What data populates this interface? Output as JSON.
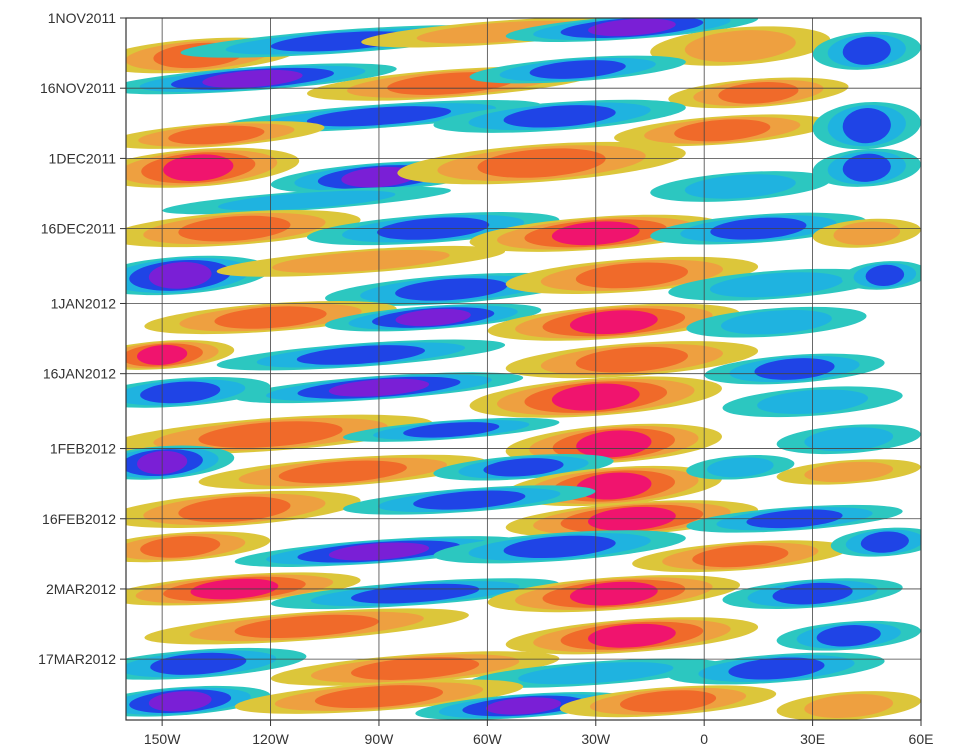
{
  "chart_data": {
    "type": "heatmap",
    "title": "",
    "xlabel": "",
    "ylabel": "",
    "x_ticks": [
      "150W",
      "120W",
      "90W",
      "60W",
      "30W",
      "0",
      "30E",
      "60E"
    ],
    "x_tick_values": [
      -150,
      -120,
      -90,
      -60,
      -30,
      0,
      30,
      60
    ],
    "xlim": [
      -160,
      60
    ],
    "y_ticks": [
      "1NOV2011",
      "16NOV2011",
      "1DEC2011",
      "16DEC2011",
      "1JAN2012",
      "16JAN2012",
      "1FEB2012",
      "16FEB2012",
      "2MAR2012",
      "17MAR2012"
    ],
    "y_tick_values": [
      "2011-11-01",
      "2011-11-16",
      "2011-12-01",
      "2011-12-16",
      "2012-01-01",
      "2012-01-16",
      "2012-02-01",
      "2012-02-16",
      "2012-03-02",
      "2012-03-17"
    ],
    "ylim": [
      "2011-11-01",
      "2012-03-30"
    ],
    "grid": true,
    "colors": {
      "neg_strong": "#7a1fd6",
      "neg_mid": "#1f44e6",
      "neg_weak": "#1fb3e0",
      "neg_faint": "#2cc7c0",
      "pos_faint": "#dcc63a",
      "pos_weak": "#eea040",
      "pos_mid": "#f06a2a",
      "pos_strong": "#f0146e"
    },
    "blobs": [
      {
        "lon": -140,
        "date": "2011-11-09",
        "dlon": 28,
        "ddays": 3.5,
        "value": 1.4
      },
      {
        "lon": -100,
        "date": "2011-11-06",
        "dlon": 45,
        "ddays": 2.5,
        "value": -1.4
      },
      {
        "lon": -55,
        "date": "2011-11-04",
        "dlon": 40,
        "ddays": 2.5,
        "value": 1.0
      },
      {
        "lon": -20,
        "date": "2011-11-03",
        "dlon": 35,
        "ddays": 2.5,
        "value": -1.6
      },
      {
        "lon": 10,
        "date": "2011-11-07",
        "dlon": 25,
        "ddays": 4,
        "value": 1.0
      },
      {
        "lon": 45,
        "date": "2011-11-08",
        "dlon": 15,
        "ddays": 4,
        "value": -1.4
      },
      {
        "lon": -125,
        "date": "2011-11-14",
        "dlon": 40,
        "ddays": 2.5,
        "value": -1.6
      },
      {
        "lon": -70,
        "date": "2011-11-15",
        "dlon": 40,
        "ddays": 3,
        "value": 1.2
      },
      {
        "lon": -35,
        "date": "2011-11-12",
        "dlon": 30,
        "ddays": 2.5,
        "value": -1.3
      },
      {
        "lon": 15,
        "date": "2011-11-17",
        "dlon": 25,
        "ddays": 3,
        "value": 1.1
      },
      {
        "lon": -90,
        "date": "2011-11-22",
        "dlon": 45,
        "ddays": 2.5,
        "value": -1.2
      },
      {
        "lon": -40,
        "date": "2011-11-22",
        "dlon": 35,
        "ddays": 3,
        "value": -1.1
      },
      {
        "lon": 5,
        "date": "2011-11-25",
        "dlon": 30,
        "ddays": 3,
        "value": 1.2
      },
      {
        "lon": 45,
        "date": "2011-11-24",
        "dlon": 15,
        "ddays": 5,
        "value": -1.4
      },
      {
        "lon": -135,
        "date": "2011-11-26",
        "dlon": 30,
        "ddays": 2.5,
        "value": 1.1
      },
      {
        "lon": -140,
        "date": "2011-12-03",
        "dlon": 28,
        "ddays": 4,
        "value": 1.9
      },
      {
        "lon": -90,
        "date": "2011-12-05",
        "dlon": 30,
        "ddays": 3,
        "value": -1.6
      },
      {
        "lon": -45,
        "date": "2011-12-02",
        "dlon": 40,
        "ddays": 4,
        "value": 1.5
      },
      {
        "lon": 10,
        "date": "2011-12-07",
        "dlon": 25,
        "ddays": 3,
        "value": -1.0
      },
      {
        "lon": 45,
        "date": "2011-12-03",
        "dlon": 15,
        "ddays": 4,
        "value": -1.2
      },
      {
        "lon": -110,
        "date": "2011-12-10",
        "dlon": 40,
        "ddays": 2,
        "value": -1.0
      },
      {
        "lon": -130,
        "date": "2011-12-16",
        "dlon": 35,
        "ddays": 3.5,
        "value": 1.4
      },
      {
        "lon": -75,
        "date": "2011-12-16",
        "dlon": 35,
        "ddays": 3,
        "value": -1.4
      },
      {
        "lon": -30,
        "date": "2011-12-17",
        "dlon": 35,
        "ddays": 3.5,
        "value": 1.8
      },
      {
        "lon": 15,
        "date": "2011-12-16",
        "dlon": 30,
        "ddays": 3,
        "value": -1.2
      },
      {
        "lon": 45,
        "date": "2011-12-17",
        "dlon": 15,
        "ddays": 3,
        "value": 1.0
      },
      {
        "lon": -145,
        "date": "2011-12-26",
        "dlon": 25,
        "ddays": 4,
        "value": -1.6
      },
      {
        "lon": -95,
        "date": "2011-12-23",
        "dlon": 40,
        "ddays": 2.5,
        "value": 1.0
      },
      {
        "lon": -70,
        "date": "2011-12-29",
        "dlon": 35,
        "ddays": 3,
        "value": -1.4
      },
      {
        "lon": -20,
        "date": "2011-12-26",
        "dlon": 35,
        "ddays": 3.5,
        "value": 1.2
      },
      {
        "lon": 20,
        "date": "2011-12-28",
        "dlon": 30,
        "ddays": 3,
        "value": -1.0
      },
      {
        "lon": 50,
        "date": "2011-12-26",
        "dlon": 12,
        "ddays": 3,
        "value": -1.4
      },
      {
        "lon": -120,
        "date": "2012-01-04",
        "dlon": 35,
        "ddays": 3,
        "value": 1.2
      },
      {
        "lon": -75,
        "date": "2012-01-04",
        "dlon": 30,
        "ddays": 2.5,
        "value": -1.8
      },
      {
        "lon": -25,
        "date": "2012-01-05",
        "dlon": 35,
        "ddays": 3.5,
        "value": 1.8
      },
      {
        "lon": 20,
        "date": "2012-01-05",
        "dlon": 25,
        "ddays": 3,
        "value": -1.0
      },
      {
        "lon": -150,
        "date": "2012-01-12",
        "dlon": 20,
        "ddays": 3,
        "value": 1.6
      },
      {
        "lon": -95,
        "date": "2012-01-12",
        "dlon": 40,
        "ddays": 2.5,
        "value": -1.5
      },
      {
        "lon": -20,
        "date": "2012-01-13",
        "dlon": 35,
        "ddays": 3.5,
        "value": 1.4
      },
      {
        "lon": 25,
        "date": "2012-01-15",
        "dlon": 25,
        "ddays": 3,
        "value": -1.4
      },
      {
        "lon": -145,
        "date": "2012-01-20",
        "dlon": 25,
        "ddays": 3,
        "value": -1.5
      },
      {
        "lon": -90,
        "date": "2012-01-19",
        "dlon": 40,
        "ddays": 2.5,
        "value": -1.8
      },
      {
        "lon": -30,
        "date": "2012-01-21",
        "dlon": 35,
        "ddays": 4,
        "value": 1.7
      },
      {
        "lon": 30,
        "date": "2012-01-22",
        "dlon": 25,
        "ddays": 3,
        "value": -1.0
      },
      {
        "lon": -120,
        "date": "2012-01-29",
        "dlon": 45,
        "ddays": 3.5,
        "value": 1.3
      },
      {
        "lon": -70,
        "date": "2012-01-28",
        "dlon": 30,
        "ddays": 2,
        "value": -1.4
      },
      {
        "lon": -25,
        "date": "2012-01-31",
        "dlon": 30,
        "ddays": 4,
        "value": 1.8
      },
      {
        "lon": 40,
        "date": "2012-01-30",
        "dlon": 20,
        "ddays": 3,
        "value": -1.0
      },
      {
        "lon": -150,
        "date": "2012-02-04",
        "dlon": 20,
        "ddays": 3.5,
        "value": -1.6
      },
      {
        "lon": -100,
        "date": "2012-02-06",
        "dlon": 40,
        "ddays": 3,
        "value": 1.2
      },
      {
        "lon": -50,
        "date": "2012-02-05",
        "dlon": 25,
        "ddays": 2.5,
        "value": -1.3
      },
      {
        "lon": -25,
        "date": "2012-02-09",
        "dlon": 30,
        "ddays": 4,
        "value": 1.9
      },
      {
        "lon": 10,
        "date": "2012-02-05",
        "dlon": 15,
        "ddays": 2.5,
        "value": -1.0
      },
      {
        "lon": 40,
        "date": "2012-02-06",
        "dlon": 20,
        "ddays": 2.5,
        "value": 1.0
      },
      {
        "lon": -130,
        "date": "2012-02-14",
        "dlon": 35,
        "ddays": 3.5,
        "value": 1.5
      },
      {
        "lon": -65,
        "date": "2012-02-12",
        "dlon": 35,
        "ddays": 2.5,
        "value": -1.2
      },
      {
        "lon": -20,
        "date": "2012-02-16",
        "dlon": 35,
        "ddays": 3.5,
        "value": 1.8
      },
      {
        "lon": 25,
        "date": "2012-02-16",
        "dlon": 30,
        "ddays": 2.5,
        "value": -1.3
      },
      {
        "lon": -145,
        "date": "2012-02-22",
        "dlon": 25,
        "ddays": 3,
        "value": 1.2
      },
      {
        "lon": -90,
        "date": "2012-02-23",
        "dlon": 40,
        "ddays": 2.5,
        "value": -1.8
      },
      {
        "lon": -40,
        "date": "2012-02-22",
        "dlon": 35,
        "ddays": 3,
        "value": -1.3
      },
      {
        "lon": 10,
        "date": "2012-02-24",
        "dlon": 30,
        "ddays": 3,
        "value": 1.4
      },
      {
        "lon": 50,
        "date": "2012-02-21",
        "dlon": 15,
        "ddays": 3,
        "value": -1.2
      },
      {
        "lon": -130,
        "date": "2012-03-02",
        "dlon": 35,
        "ddays": 3,
        "value": 1.6
      },
      {
        "lon": -80,
        "date": "2012-03-03",
        "dlon": 40,
        "ddays": 2.5,
        "value": -1.4
      },
      {
        "lon": -25,
        "date": "2012-03-03",
        "dlon": 35,
        "ddays": 3.5,
        "value": 1.7
      },
      {
        "lon": 30,
        "date": "2012-03-03",
        "dlon": 25,
        "ddays": 3,
        "value": -1.3
      },
      {
        "lon": -110,
        "date": "2012-03-10",
        "dlon": 45,
        "ddays": 3,
        "value": 1.3
      },
      {
        "lon": -20,
        "date": "2012-03-12",
        "dlon": 35,
        "ddays": 3.5,
        "value": 1.9
      },
      {
        "lon": 40,
        "date": "2012-03-12",
        "dlon": 20,
        "ddays": 3,
        "value": -1.5
      },
      {
        "lon": -140,
        "date": "2012-03-18",
        "dlon": 30,
        "ddays": 3,
        "value": -1.4
      },
      {
        "lon": -80,
        "date": "2012-03-19",
        "dlon": 40,
        "ddays": 3,
        "value": 1.2
      },
      {
        "lon": -30,
        "date": "2012-03-20",
        "dlon": 35,
        "ddays": 2.5,
        "value": -1.0
      },
      {
        "lon": 20,
        "date": "2012-03-19",
        "dlon": 30,
        "ddays": 3,
        "value": -1.3
      },
      {
        "lon": -145,
        "date": "2012-03-26",
        "dlon": 25,
        "ddays": 3,
        "value": -1.9
      },
      {
        "lon": -90,
        "date": "2012-03-25",
        "dlon": 40,
        "ddays": 3,
        "value": 1.1
      },
      {
        "lon": -50,
        "date": "2012-03-27",
        "dlon": 30,
        "ddays": 2.5,
        "value": -1.7
      },
      {
        "lon": -10,
        "date": "2012-03-26",
        "dlon": 30,
        "ddays": 3,
        "value": 1.2
      },
      {
        "lon": 40,
        "date": "2012-03-27",
        "dlon": 20,
        "ddays": 3,
        "value": 1.0
      }
    ]
  }
}
